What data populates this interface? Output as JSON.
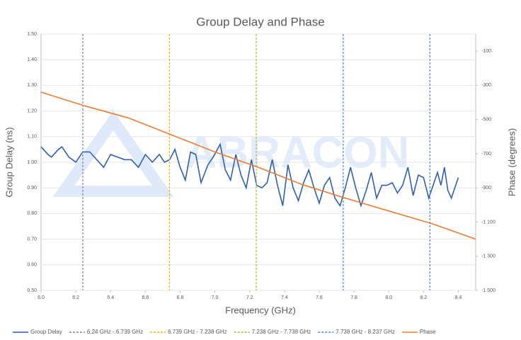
{
  "chart_data": {
    "type": "line",
    "title": "Group Delay and Phase",
    "xlabel": "Frequency (GHz)",
    "ylabel": "Group Delay (ns)",
    "y2label": "Phase (degrees)",
    "watermark": "ABRACON",
    "xlim": [
      6.0,
      8.5
    ],
    "xticks": [
      {
        "value": 6.0,
        "label": "6.0"
      },
      6.2,
      6.4,
      6.6,
      6.8,
      {
        "value": 7.0,
        "label": "7.0"
      },
      7.2,
      7.4,
      7.6,
      7.8,
      {
        "value": 8.0,
        "label": "8.0"
      },
      8.2,
      8.4
    ],
    "ylim": [
      0.5,
      1.5
    ],
    "yticks": [
      {
        "value": 0.5,
        "label": "0.50"
      },
      {
        "value": 0.6,
        "label": "0.60"
      },
      {
        "value": 0.7,
        "label": "0.70"
      },
      {
        "value": 0.8,
        "label": "0.80"
      },
      {
        "value": 0.9,
        "label": "0.90"
      },
      {
        "value": 1.0,
        "label": "1.00"
      },
      {
        "value": 1.1,
        "label": "1.10"
      },
      {
        "value": 1.2,
        "label": "1.20"
      },
      {
        "value": 1.3,
        "label": "1.30"
      },
      {
        "value": 1.4,
        "label": "1.40"
      },
      {
        "value": 1.5,
        "label": "1.50"
      }
    ],
    "y2lim": [
      -1500,
      0
    ],
    "y2ticks": [
      {
        "value": -1500,
        "label": "-1 500"
      },
      {
        "value": -1300,
        "label": "-1 300"
      },
      {
        "value": -1100,
        "label": "-1 100"
      },
      -900,
      -700,
      -500,
      -300,
      -100
    ],
    "grid": true,
    "series": [
      {
        "name": "Group Delay",
        "color": "#2f5fb3",
        "x": [
          6.0,
          6.04,
          6.06,
          6.1,
          6.12,
          6.16,
          6.2,
          6.24,
          6.28,
          6.32,
          6.36,
          6.4,
          6.44,
          6.48,
          6.52,
          6.56,
          6.6,
          6.64,
          6.68,
          6.71,
          6.74,
          6.77,
          6.8,
          6.83,
          6.86,
          6.89,
          6.92,
          6.96,
          6.99,
          7.03,
          7.06,
          7.09,
          7.12,
          7.15,
          7.18,
          7.21,
          7.24,
          7.27,
          7.3,
          7.33,
          7.36,
          7.39,
          7.42,
          7.45,
          7.48,
          7.51,
          7.54,
          7.57,
          7.6,
          7.63,
          7.66,
          7.69,
          7.72,
          7.75,
          7.78,
          7.81,
          7.84,
          7.87,
          7.9,
          7.93,
          7.96,
          7.99,
          8.02,
          8.05,
          8.08,
          8.11,
          8.14,
          8.17,
          8.2,
          8.23,
          8.26,
          8.28,
          8.3,
          8.32,
          8.34,
          8.36,
          8.38,
          8.4
        ],
        "values": [
          1.06,
          1.03,
          1.02,
          1.05,
          1.06,
          1.02,
          1.0,
          1.04,
          1.04,
          1.01,
          0.98,
          1.03,
          1.02,
          1.01,
          1.01,
          0.98,
          1.03,
          1.0,
          1.03,
          1.0,
          1.01,
          1.05,
          0.98,
          0.93,
          1.04,
          1.03,
          0.92,
          0.99,
          1.02,
          1.07,
          0.97,
          0.93,
          1.03,
          0.95,
          0.9,
          1.01,
          0.91,
          0.9,
          0.92,
          1.01,
          0.91,
          0.83,
          0.99,
          0.9,
          0.85,
          0.92,
          0.97,
          0.9,
          0.84,
          0.91,
          0.94,
          0.86,
          0.83,
          0.9,
          0.98,
          0.9,
          0.83,
          0.89,
          0.96,
          0.86,
          0.91,
          0.91,
          0.92,
          0.88,
          0.91,
          0.98,
          0.87,
          0.95,
          0.94,
          0.86,
          0.92,
          0.96,
          0.91,
          0.98,
          0.89,
          0.86,
          0.9,
          0.94
        ]
      },
      {
        "name": "6.24 GHz - 6.739 GHz",
        "color": "#7a7fa8",
        "marker_x": 6.24
      },
      {
        "name": "6.739 GHz - 7.238 GHz",
        "color": "#f0b000",
        "marker_x": 6.739
      },
      {
        "name": "7.238 GHz - 7.738 GHz",
        "color": "#a5c12a",
        "marker_x": 7.238
      },
      {
        "name": "7.738 GHz - 8.237 GHz",
        "color": "#4a86e8",
        "marker_x": 7.738
      },
      {
        "name": "Phase",
        "color": "#ed7d31",
        "axis": "y2",
        "x": [
          6.0,
          6.25,
          6.5,
          6.75,
          7.0,
          7.25,
          7.5,
          7.75,
          8.0,
          8.25,
          8.5
        ],
        "values": [
          -340,
          -420,
          -490,
          -590,
          -690,
          -780,
          -880,
          -960,
          -1035,
          -1110,
          -1200
        ]
      }
    ],
    "extra_marker": {
      "color": "#4a86e8",
      "marker_x": 8.237
    }
  }
}
